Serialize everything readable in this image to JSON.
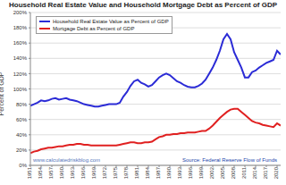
{
  "chart_data": {
    "type": "line",
    "title": "Household Real Estate Value and Household Mortgage Debt as Percent of GDP",
    "y_label": "Percent of GDP",
    "annotations": [
      "www.calculatedriskblog.com",
      "Source: Federal Reserve Flow of Funds"
    ],
    "legend": "upper left",
    "grid": true,
    "x": [
      1951,
      1952,
      1953,
      1954,
      1955,
      1956,
      1957,
      1958,
      1959,
      1960,
      1961,
      1962,
      1963,
      1964,
      1965,
      1966,
      1967,
      1968,
      1969,
      1970,
      1971,
      1972,
      1973,
      1974,
      1975,
      1976,
      1977,
      1978,
      1979,
      1980,
      1981,
      1982,
      1983,
      1984,
      1985,
      1986,
      1987,
      1988,
      1989,
      1990,
      1991,
      1992,
      1993,
      1994,
      1995,
      1996,
      1997,
      1998,
      1999,
      2000,
      2001,
      2002,
      2003,
      2004,
      2005,
      2006,
      2007,
      2008,
      2009,
      2010,
      2011,
      2012,
      2013,
      2014,
      2015,
      2016,
      2017,
      2018,
      2019,
      2020,
      2021
    ],
    "series": [
      {
        "name": "Household Real Estate Value as Percent of GDP",
        "color": "#2b2bd6",
        "values": [
          78,
          80,
          82,
          85,
          84,
          85,
          87,
          88,
          86,
          87,
          88,
          86,
          85,
          84,
          82,
          80,
          79,
          78,
          77,
          77,
          78,
          79,
          80,
          80,
          80,
          82,
          90,
          96,
          104,
          110,
          112,
          108,
          106,
          103,
          105,
          110,
          115,
          118,
          120,
          118,
          114,
          110,
          108,
          105,
          103,
          102,
          102,
          104,
          107,
          112,
          120,
          128,
          138,
          150,
          165,
          172,
          165,
          148,
          138,
          128,
          115,
          115,
          122,
          124,
          128,
          131,
          134,
          136,
          138,
          150,
          145
        ]
      },
      {
        "name": "Mortgage Debt as Percent of GDP",
        "color": "#e02020",
        "values": [
          16,
          18,
          19,
          21,
          22,
          23,
          23,
          24,
          25,
          25,
          26,
          27,
          27,
          28,
          28,
          27,
          27,
          26,
          26,
          26,
          26,
          26,
          26,
          26,
          26,
          27,
          28,
          29,
          30,
          30,
          29,
          29,
          30,
          30,
          31,
          34,
          37,
          38,
          40,
          40,
          41,
          41,
          42,
          42,
          43,
          43,
          43,
          44,
          45,
          45,
          48,
          52,
          57,
          62,
          66,
          70,
          73,
          74,
          74,
          70,
          66,
          62,
          58,
          56,
          55,
          53,
          52,
          51,
          50,
          55,
          52
        ]
      }
    ],
    "xlim": [
      1951,
      2021
    ],
    "xticks": [
      1951,
      1954,
      1957,
      1960,
      1963,
      1966,
      1969,
      1972,
      1975,
      1978,
      1981,
      1984,
      1987,
      1990,
      1993,
      1996,
      1999,
      2002,
      2005,
      2008,
      2011,
      2014,
      2017,
      2020
    ],
    "ylim": [
      0,
      200
    ],
    "yticks": [
      {
        "value": 0,
        "label": "0%"
      },
      {
        "value": 20,
        "label": "20%"
      },
      {
        "value": 40,
        "label": "40%"
      },
      {
        "value": 60,
        "label": "60%"
      },
      {
        "value": 80,
        "label": "80%"
      },
      {
        "value": 100,
        "label": "100%"
      },
      {
        "value": 120,
        "label": "120%"
      },
      {
        "value": 140,
        "label": "140%"
      },
      {
        "value": 160,
        "label": "160%"
      },
      {
        "value": 180,
        "label": "180%"
      },
      {
        "value": 200,
        "label": "200%"
      }
    ]
  }
}
